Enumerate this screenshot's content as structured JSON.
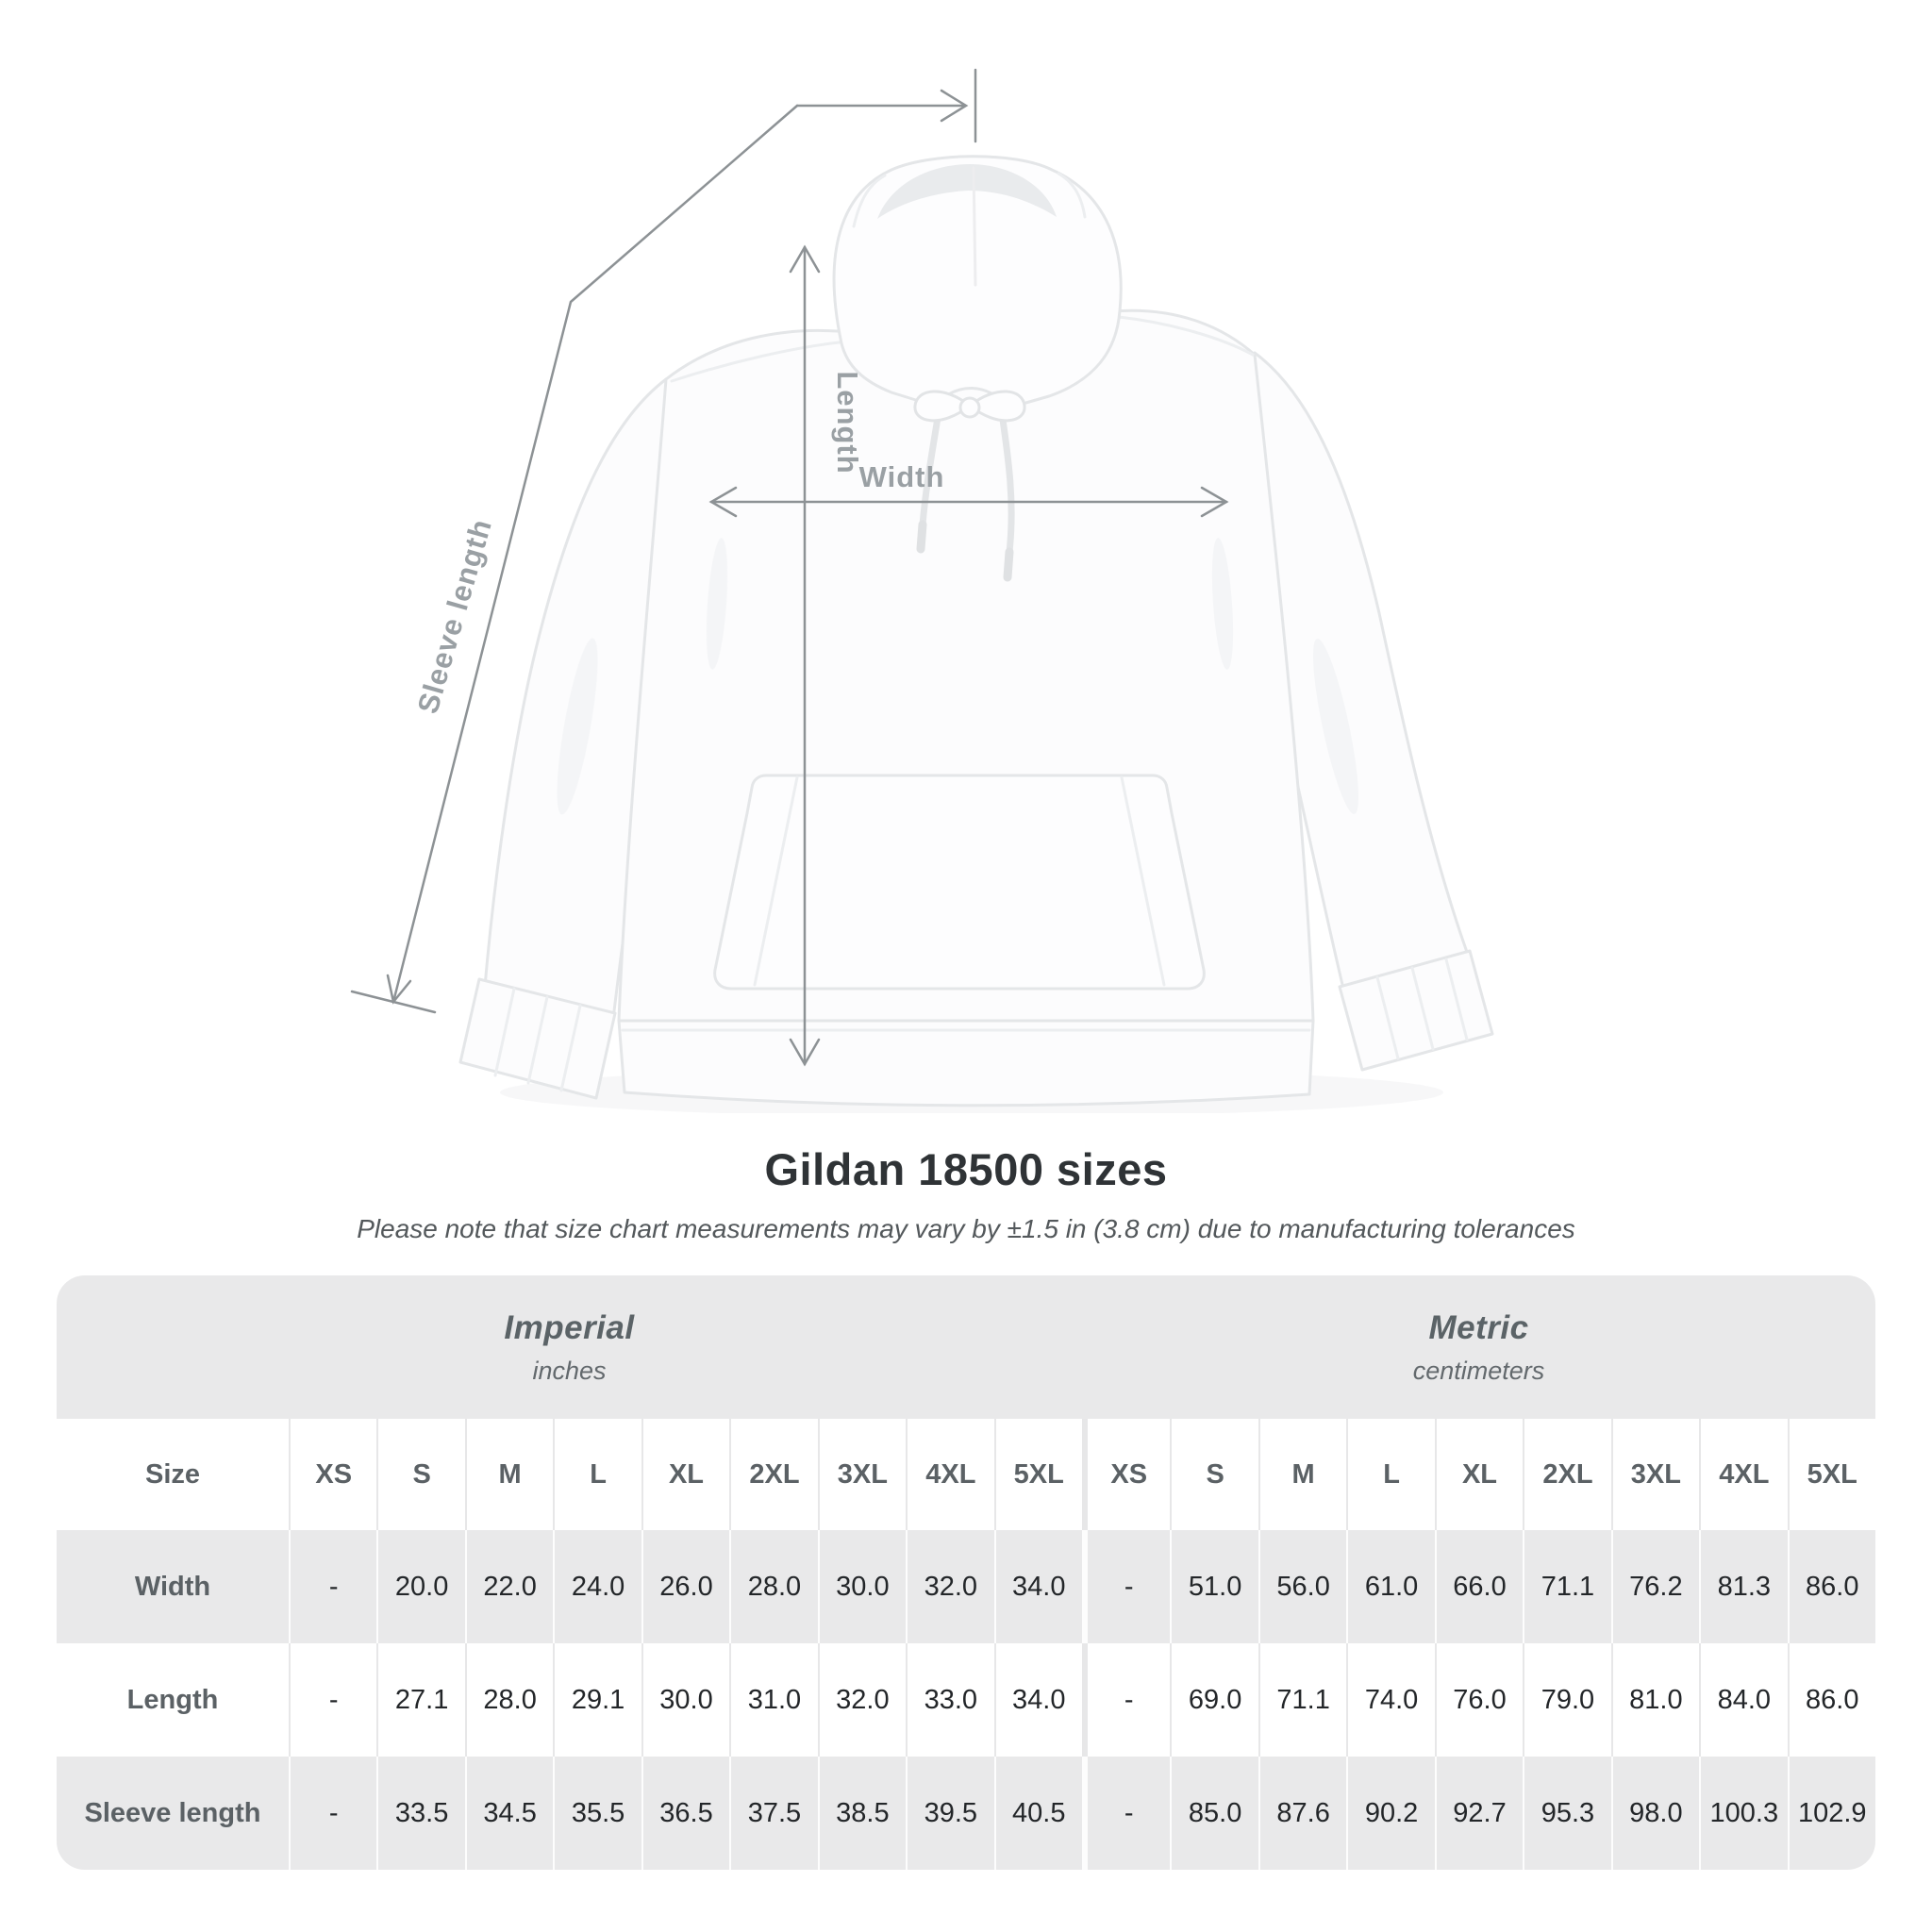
{
  "diagram": {
    "labels": {
      "sleeve_length": "Sleeve length",
      "length": "Length",
      "width": "Width"
    }
  },
  "title": "Gildan 18500 sizes",
  "subtitle": "Please note that size chart measurements may vary by ±1.5 in (3.8 cm) due to manufacturing tolerances",
  "table": {
    "size_header_label": "Size",
    "unit_groups": [
      {
        "name": "Imperial",
        "unit": "inches"
      },
      {
        "name": "Metric",
        "unit": "centimeters"
      }
    ],
    "sizes": [
      "XS",
      "S",
      "M",
      "L",
      "XL",
      "2XL",
      "3XL",
      "4XL",
      "5XL"
    ],
    "rows": [
      {
        "label": "Width",
        "imperial": [
          "-",
          "20.0",
          "22.0",
          "24.0",
          "26.0",
          "28.0",
          "30.0",
          "32.0",
          "34.0"
        ],
        "metric": [
          "-",
          "51.0",
          "56.0",
          "61.0",
          "66.0",
          "71.1",
          "76.2",
          "81.3",
          "86.0"
        ]
      },
      {
        "label": "Length",
        "imperial": [
          "-",
          "27.1",
          "28.0",
          "29.1",
          "30.0",
          "31.0",
          "32.0",
          "33.0",
          "34.0"
        ],
        "metric": [
          "-",
          "69.0",
          "71.1",
          "74.0",
          "76.0",
          "79.0",
          "81.0",
          "84.0",
          "86.0"
        ]
      },
      {
        "label": "Sleeve length",
        "imperial": [
          "-",
          "33.5",
          "34.5",
          "35.5",
          "36.5",
          "37.5",
          "38.5",
          "39.5",
          "40.5"
        ],
        "metric": [
          "-",
          "85.0",
          "87.6",
          "90.2",
          "92.7",
          "95.3",
          "98.0",
          "100.3",
          "102.9"
        ]
      }
    ]
  },
  "chart_data": {
    "type": "table",
    "title": "Gildan 18500 sizes",
    "unit_groups": [
      "Imperial (inches)",
      "Metric (centimeters)"
    ],
    "sizes": [
      "XS",
      "S",
      "M",
      "L",
      "XL",
      "2XL",
      "3XL",
      "4XL",
      "5XL"
    ],
    "rows": [
      {
        "label": "Width",
        "imperial": [
          null,
          20.0,
          22.0,
          24.0,
          26.0,
          28.0,
          30.0,
          32.0,
          34.0
        ],
        "metric": [
          null,
          51.0,
          56.0,
          61.0,
          66.0,
          71.1,
          76.2,
          81.3,
          86.0
        ]
      },
      {
        "label": "Length",
        "imperial": [
          null,
          27.1,
          28.0,
          29.1,
          30.0,
          31.0,
          32.0,
          33.0,
          34.0
        ],
        "metric": [
          null,
          69.0,
          71.1,
          74.0,
          76.0,
          79.0,
          81.0,
          84.0,
          86.0
        ]
      },
      {
        "label": "Sleeve length",
        "imperial": [
          null,
          33.5,
          34.5,
          35.5,
          36.5,
          37.5,
          38.5,
          39.5,
          40.5
        ],
        "metric": [
          null,
          85.0,
          87.6,
          90.2,
          92.7,
          95.3,
          98.0,
          100.3,
          102.9
        ]
      }
    ]
  },
  "colors": {
    "measure_line": "#8d9295",
    "measure_label": "#9aa0a4",
    "table_band": "#e9e9ea",
    "row_gray": "#e9e9ea",
    "value_text": "#232629",
    "header_text": "#5b6165",
    "title_text": "#2f3336"
  }
}
